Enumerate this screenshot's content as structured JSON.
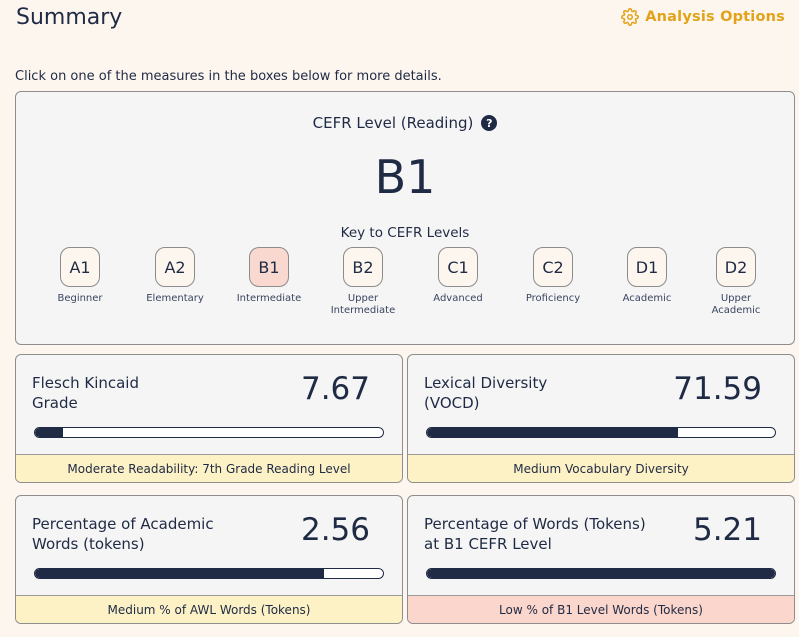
{
  "header": {
    "title": "Summary",
    "options_label": "Analysis Options",
    "options_icon": "gear-icon",
    "accent_color": "#e2a31a"
  },
  "instructions": "Click on one of the measures in the boxes below for more details.",
  "cefr": {
    "title": "CEFR Level (Reading)",
    "help_icon": "?",
    "level": "B1",
    "key_title": "Key to CEFR Levels",
    "levels": [
      {
        "code": "A1",
        "label": "Beginner",
        "active": false
      },
      {
        "code": "A2",
        "label": "Elementary",
        "active": false
      },
      {
        "code": "B1",
        "label": "Intermediate",
        "active": true
      },
      {
        "code": "B2",
        "label": "Upper Intermediate",
        "active": false
      },
      {
        "code": "C1",
        "label": "Advanced",
        "active": false
      },
      {
        "code": "C2",
        "label": "Proficiency",
        "active": false
      },
      {
        "code": "D1",
        "label": "Academic",
        "active": false
      },
      {
        "code": "D2",
        "label": "Upper Academic",
        "active": false
      }
    ]
  },
  "metrics": [
    {
      "label": "Flesch Kincaid Grade",
      "value": "7.67",
      "progress": 0.08,
      "footer": "Moderate Readability: 7th Grade Reading Level",
      "footer_color": "yellow"
    },
    {
      "label": "Lexical Diversity (VOCD)",
      "value": "71.59",
      "progress": 0.72,
      "footer": "Medium Vocabulary Diversity",
      "footer_color": "yellow"
    },
    {
      "label": "Percentage of Academic Words (tokens)",
      "value": "2.56",
      "progress": 0.83,
      "footer": "Medium % of AWL Words (Tokens)",
      "footer_color": "yellow"
    },
    {
      "label": "Percentage of Words (Tokens) at B1 CEFR Level",
      "value": "5.21",
      "progress": 1.0,
      "footer": "Low % of B1 Level Words (Tokens)",
      "footer_color": "red"
    }
  ]
}
